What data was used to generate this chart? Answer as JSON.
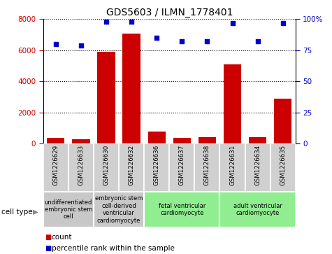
{
  "title": "GDS5603 / ILMN_1778401",
  "samples": [
    "GSM1226629",
    "GSM1226633",
    "GSM1226630",
    "GSM1226632",
    "GSM1226636",
    "GSM1226637",
    "GSM1226638",
    "GSM1226631",
    "GSM1226634",
    "GSM1226635"
  ],
  "counts": [
    350,
    280,
    5900,
    7050,
    750,
    380,
    410,
    5100,
    420,
    2900
  ],
  "percentiles": [
    80,
    79,
    98,
    98,
    85,
    82,
    82,
    97,
    82,
    97
  ],
  "bar_color": "#cc0000",
  "dot_color": "#0000cc",
  "ylim_left": [
    0,
    8000
  ],
  "ylim_right": [
    0,
    100
  ],
  "yticks_left": [
    0,
    2000,
    4000,
    6000,
    8000
  ],
  "yticks_right": [
    0,
    25,
    50,
    75,
    100
  ],
  "cell_types": [
    {
      "label": "undifferentiated\nembryonic stem\ncell",
      "span": [
        0,
        2
      ],
      "color": "#c8c8c8"
    },
    {
      "label": "embryonic stem\ncell-derived\nventricular\ncardiomyocyte",
      "span": [
        2,
        4
      ],
      "color": "#c8c8c8"
    },
    {
      "label": "fetal ventricular\ncardiomyocyte",
      "span": [
        4,
        7
      ],
      "color": "#90ee90"
    },
    {
      "label": "adult ventricular\ncardiomyocyte",
      "span": [
        7,
        10
      ],
      "color": "#90ee90"
    }
  ],
  "sample_box_color": "#d0d0d0",
  "left_tick_color": "#cc0000",
  "right_tick_color": "#0000cc"
}
